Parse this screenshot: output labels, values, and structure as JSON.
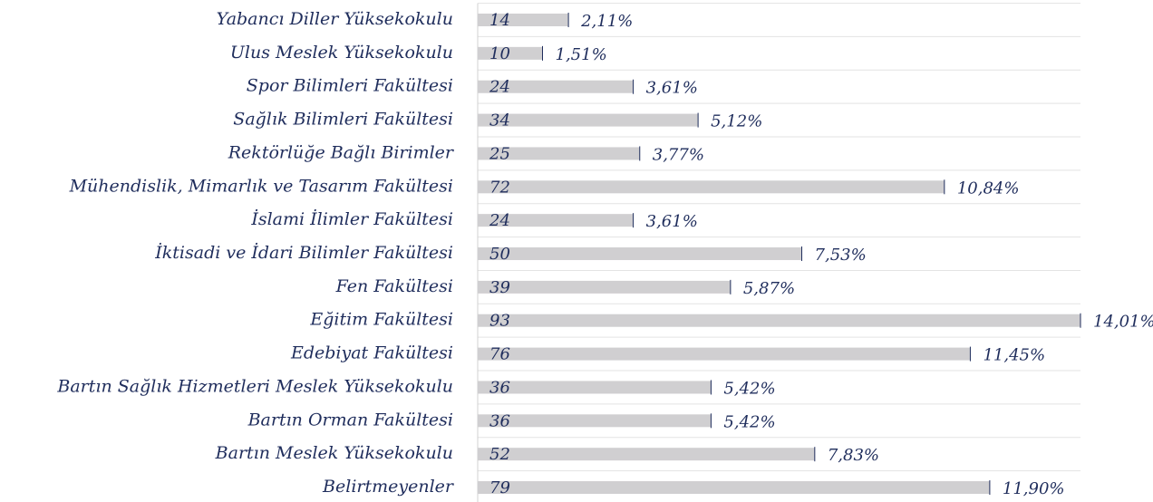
{
  "chart_data": {
    "type": "bar",
    "orientation": "horizontal",
    "categories": [
      "Yabancı Diller Yüksekokulu",
      "Ulus Meslek Yüksekokulu",
      "Spor Bilimleri Fakültesi",
      "Sağlık Bilimleri Fakültesi",
      "Rektörlüğe Bağlı Birimler",
      "Mühendislik, Mimarlık ve Tasarım Fakültesi",
      "İslami İlimler Fakültesi",
      "İktisadi ve İdari Bilimler Fakültesi",
      "Fen Fakültesi",
      "Eğitim Fakültesi",
      "Edebiyat Fakültesi",
      "Bartın Sağlık Hizmetleri Meslek Yüksekokulu",
      "Bartın Orman Fakültesi",
      "Bartın Meslek Yüksekokulu",
      "Belirtmeyenler"
    ],
    "values": [
      14,
      10,
      24,
      34,
      25,
      72,
      24,
      50,
      39,
      93,
      76,
      36,
      36,
      52,
      79
    ],
    "shares": [
      2.11,
      1.51,
      3.61,
      5.12,
      3.77,
      10.84,
      3.61,
      7.53,
      5.87,
      14.01,
      11.45,
      5.42,
      5.42,
      7.83,
      11.9
    ],
    "share_labels": [
      "2,11%",
      "1,51%",
      "3,61%",
      "5,12%",
      "3,77%",
      "10,84%",
      "3,61%",
      "7,53%",
      "5,87%",
      "14,01%",
      "11,45%",
      "5,42%",
      "5,42%",
      "7,83%",
      "11,90%"
    ],
    "color": "#d0cfd1"
  }
}
